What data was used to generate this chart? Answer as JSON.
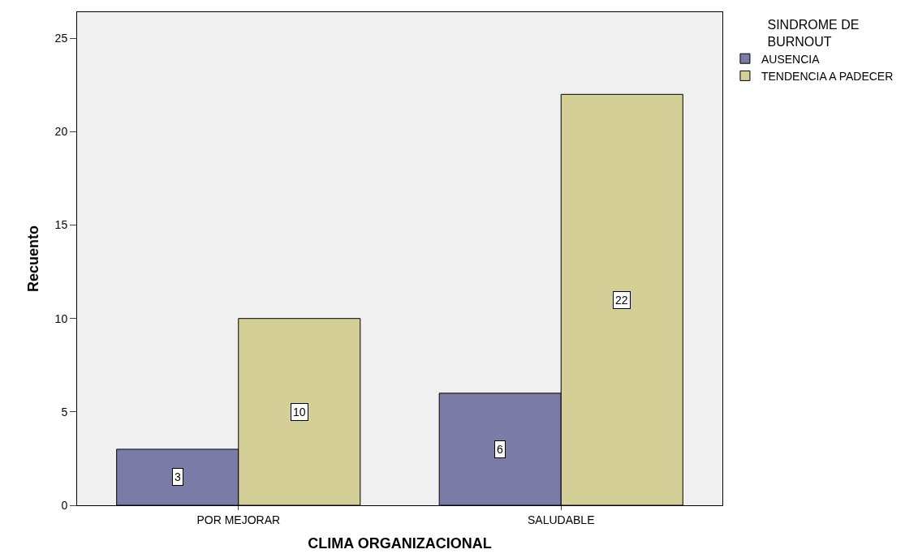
{
  "chart_data": {
    "type": "bar",
    "xlabel": "CLIMA ORGANIZACIONAL",
    "ylabel": "Recuento",
    "legend_title": "SINDROME DE BURNOUT",
    "categories": [
      "POR MEJORAR",
      "SALUDABLE"
    ],
    "series": [
      {
        "name": "AUSENCIA",
        "color": "#7b7ba8",
        "values": [
          3,
          6
        ]
      },
      {
        "name": "TENDENCIA A PADECER",
        "color": "#d3cf96",
        "values": [
          10,
          22
        ]
      }
    ],
    "ylim": [
      0,
      26.4
    ],
    "yticks": [
      0,
      5,
      10,
      15,
      20,
      25
    ],
    "grid": false,
    "legend": "top right",
    "data_labels": true
  }
}
